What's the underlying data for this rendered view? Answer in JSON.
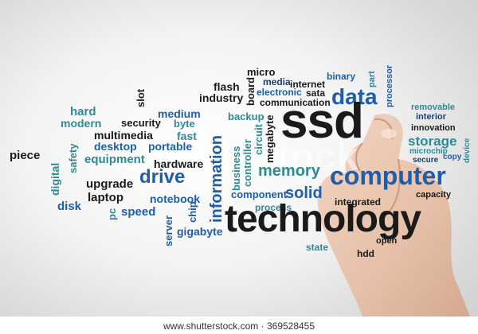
{
  "words": {
    "hard": "hard",
    "modern": "modern",
    "slot": "slot",
    "medium": "medium",
    "security": "security",
    "byte": "byte",
    "multimedia": "multimedia",
    "piece": "piece",
    "safety": "safety",
    "desktop": "desktop",
    "portable": "portable",
    "fast": "fast",
    "equipment": "equipment",
    "hardware": "hardware",
    "digital": "digital",
    "upgrade": "upgrade",
    "drive": "drive",
    "laptop": "laptop",
    "disk": "disk",
    "pc": "pc",
    "speed": "speed",
    "notebook": "notebook",
    "chip": "chip",
    "server": "server",
    "gigabyte": "gigabyte",
    "flash": "flash",
    "industry": "industry",
    "micro": "micro",
    "media": "media",
    "internet": "internet",
    "binary": "binary",
    "part": "part",
    "processor": "processor",
    "electronic": "electronic",
    "sata": "sata",
    "communication": "communication",
    "board": "board",
    "data": "data",
    "backup": "backup",
    "information": "information",
    "business": "business",
    "circuit": "circuit",
    "controller": "controller",
    "megabyte": "megabyte",
    "ssd": "ssd",
    "memory": "memory",
    "component": "component",
    "solid": "solid",
    "process": "process",
    "technology": "technology",
    "state": "state",
    "hdd": "hdd",
    "open": "open",
    "integrated": "integrated",
    "computer": "computer",
    "capacity": "capacity",
    "removable": "removable",
    "interior": "interior",
    "innovation": "innovation",
    "storage": "storage",
    "microchip": "microchip",
    "secure": "secure",
    "copy": "copy",
    "device": "device"
  },
  "watermark": "shutterstock",
  "credit": "www.shutterstock.com · 369528455"
}
